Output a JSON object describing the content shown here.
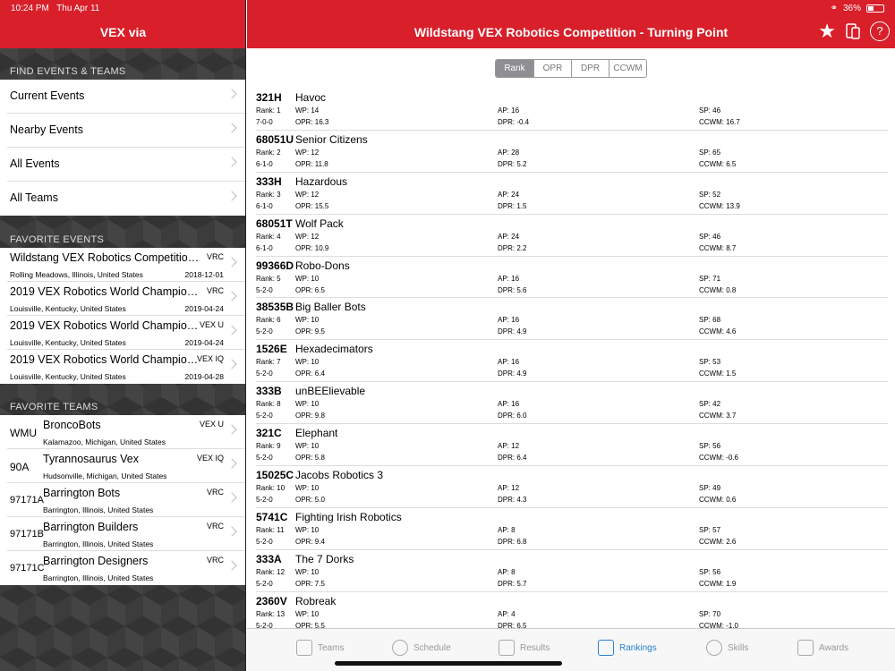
{
  "status": {
    "time": "10:24 PM",
    "date": "Thu Apr 11",
    "battery": "36%"
  },
  "sidebar": {
    "title": "VEX via",
    "find_header": "FIND EVENTS & TEAMS",
    "find_items": [
      "Current Events",
      "Nearby Events",
      "All Events",
      "All Teams"
    ],
    "fav_events_header": "FAVORITE EVENTS",
    "fav_events": [
      {
        "name": "Wildstang VEX Robotics Competition...",
        "program": "VRC",
        "location": "Rolling Meadows, Illinois, United States",
        "date": "2018-12-01"
      },
      {
        "name": "2019 VEX Robotics World Champions...",
        "program": "VRC",
        "location": "Louisville, Kentucky, United States",
        "date": "2019-04-24"
      },
      {
        "name": "2019 VEX Robotics World Champions...",
        "program": "VEX U",
        "location": "Louisville, Kentucky, United States",
        "date": "2019-04-24"
      },
      {
        "name": "2019 VEX Robotics World Champions...",
        "program": "VEX IQ",
        "location": "Louisville, Kentucky, United States",
        "date": "2019-04-28"
      }
    ],
    "fav_teams_header": "FAVORITE TEAMS",
    "fav_teams": [
      {
        "number": "WMU",
        "name": "BroncoBots",
        "program": "VEX U",
        "location": "Kalamazoo, Michigan, United States"
      },
      {
        "number": "90A",
        "name": "Tyrannosaurus Vex",
        "program": "VEX IQ",
        "location": "Hudsonville, Michigan, United States"
      },
      {
        "number": "97171A",
        "name": "Barrington Bots",
        "program": "VRC",
        "location": "Barrington, Illinois, United States"
      },
      {
        "number": "97171B",
        "name": "Barrington Builders",
        "program": "VRC",
        "location": "Barrington, Illinois, United States"
      },
      {
        "number": "97171C",
        "name": "Barrington Designers",
        "program": "VRC",
        "location": "Barrington, Illinois, United States"
      }
    ]
  },
  "main": {
    "title": "Wildstang VEX Robotics Competition - Turning Point",
    "segments": [
      "Rank",
      "OPR",
      "DPR",
      "CCWM"
    ],
    "rankings": [
      {
        "team": "321H",
        "name": "Havoc",
        "rank": "Rank: 1",
        "record": "7-0-0",
        "wp": "WP: 14",
        "opr": "OPR: 16.3",
        "ap": "AP: 16",
        "dpr": "DPR: -0.4",
        "sp": "SP: 46",
        "ccwm": "CCWM: 16.7"
      },
      {
        "team": "68051U",
        "name": "Senior Citizens",
        "rank": "Rank: 2",
        "record": "6-1-0",
        "wp": "WP: 12",
        "opr": "OPR: 11.8",
        "ap": "AP: 28",
        "dpr": "DPR: 5.2",
        "sp": "SP: 65",
        "ccwm": "CCWM: 6.5"
      },
      {
        "team": "333H",
        "name": "Hazardous",
        "rank": "Rank: 3",
        "record": "6-1-0",
        "wp": "WP: 12",
        "opr": "OPR: 15.5",
        "ap": "AP: 24",
        "dpr": "DPR: 1.5",
        "sp": "SP: 52",
        "ccwm": "CCWM: 13.9"
      },
      {
        "team": "68051T",
        "name": "Wolf Pack",
        "rank": "Rank: 4",
        "record": "6-1-0",
        "wp": "WP: 12",
        "opr": "OPR: 10.9",
        "ap": "AP: 24",
        "dpr": "DPR: 2.2",
        "sp": "SP: 46",
        "ccwm": "CCWM: 8.7"
      },
      {
        "team": "99366D",
        "name": "Robo-Dons",
        "rank": "Rank: 5",
        "record": "5-2-0",
        "wp": "WP: 10",
        "opr": "OPR: 6.5",
        "ap": "AP: 16",
        "dpr": "DPR: 5.6",
        "sp": "SP: 71",
        "ccwm": "CCWM: 0.8"
      },
      {
        "team": "38535B",
        "name": "Big Baller Bots",
        "rank": "Rank: 6",
        "record": "5-2-0",
        "wp": "WP: 10",
        "opr": "OPR: 9.5",
        "ap": "AP: 16",
        "dpr": "DPR: 4.9",
        "sp": "SP: 68",
        "ccwm": "CCWM: 4.6"
      },
      {
        "team": "1526E",
        "name": "Hexadecimators",
        "rank": "Rank: 7",
        "record": "5-2-0",
        "wp": "WP: 10",
        "opr": "OPR: 6.4",
        "ap": "AP: 16",
        "dpr": "DPR: 4.9",
        "sp": "SP: 53",
        "ccwm": "CCWM: 1.5"
      },
      {
        "team": "333B",
        "name": "unBEElievable",
        "rank": "Rank: 8",
        "record": "5-2-0",
        "wp": "WP: 10",
        "opr": "OPR: 9.8",
        "ap": "AP: 16",
        "dpr": "DPR: 6.0",
        "sp": "SP: 42",
        "ccwm": "CCWM: 3.7"
      },
      {
        "team": "321C",
        "name": "Elephant",
        "rank": "Rank: 9",
        "record": "5-2-0",
        "wp": "WP: 10",
        "opr": "OPR: 5.8",
        "ap": "AP: 12",
        "dpr": "DPR: 6.4",
        "sp": "SP: 56",
        "ccwm": "CCWM: -0.6"
      },
      {
        "team": "15025C",
        "name": "Jacobs Robotics 3",
        "rank": "Rank: 10",
        "record": "5-2-0",
        "wp": "WP: 10",
        "opr": "OPR: 5.0",
        "ap": "AP: 12",
        "dpr": "DPR: 4.3",
        "sp": "SP: 49",
        "ccwm": "CCWM: 0.6"
      },
      {
        "team": "5741C",
        "name": "Fighting Irish Robotics",
        "rank": "Rank: 11",
        "record": "5-2-0",
        "wp": "WP: 10",
        "opr": "OPR: 9.4",
        "ap": "AP: 8",
        "dpr": "DPR: 6.8",
        "sp": "SP: 57",
        "ccwm": "CCWM: 2.6"
      },
      {
        "team": "333A",
        "name": "The 7 Dorks",
        "rank": "Rank: 12",
        "record": "5-2-0",
        "wp": "WP: 10",
        "opr": "OPR: 7.5",
        "ap": "AP: 8",
        "dpr": "DPR: 5.7",
        "sp": "SP: 56",
        "ccwm": "CCWM: 1.9"
      },
      {
        "team": "2360V",
        "name": "Robreak",
        "rank": "Rank: 13",
        "record": "5-2-0",
        "wp": "WP: 10",
        "opr": "OPR: 5.5",
        "ap": "AP: 4",
        "dpr": "DPR: 6.5",
        "sp": "SP: 70",
        "ccwm": "CCWM: -1.0"
      }
    ]
  },
  "tabs": [
    {
      "label": "Teams",
      "icon": "teams-icon",
      "active": false
    },
    {
      "label": "Schedule",
      "icon": "clock-icon",
      "active": false
    },
    {
      "label": "Results",
      "icon": "results-icon",
      "active": false
    },
    {
      "label": "Rankings",
      "icon": "rankings-icon",
      "active": true
    },
    {
      "label": "Skills",
      "icon": "check-icon",
      "active": false
    },
    {
      "label": "Awards",
      "icon": "trophy-icon",
      "active": false
    }
  ],
  "colors": {
    "header": "#d81f2a",
    "active_tab": "#2a7fd4"
  }
}
